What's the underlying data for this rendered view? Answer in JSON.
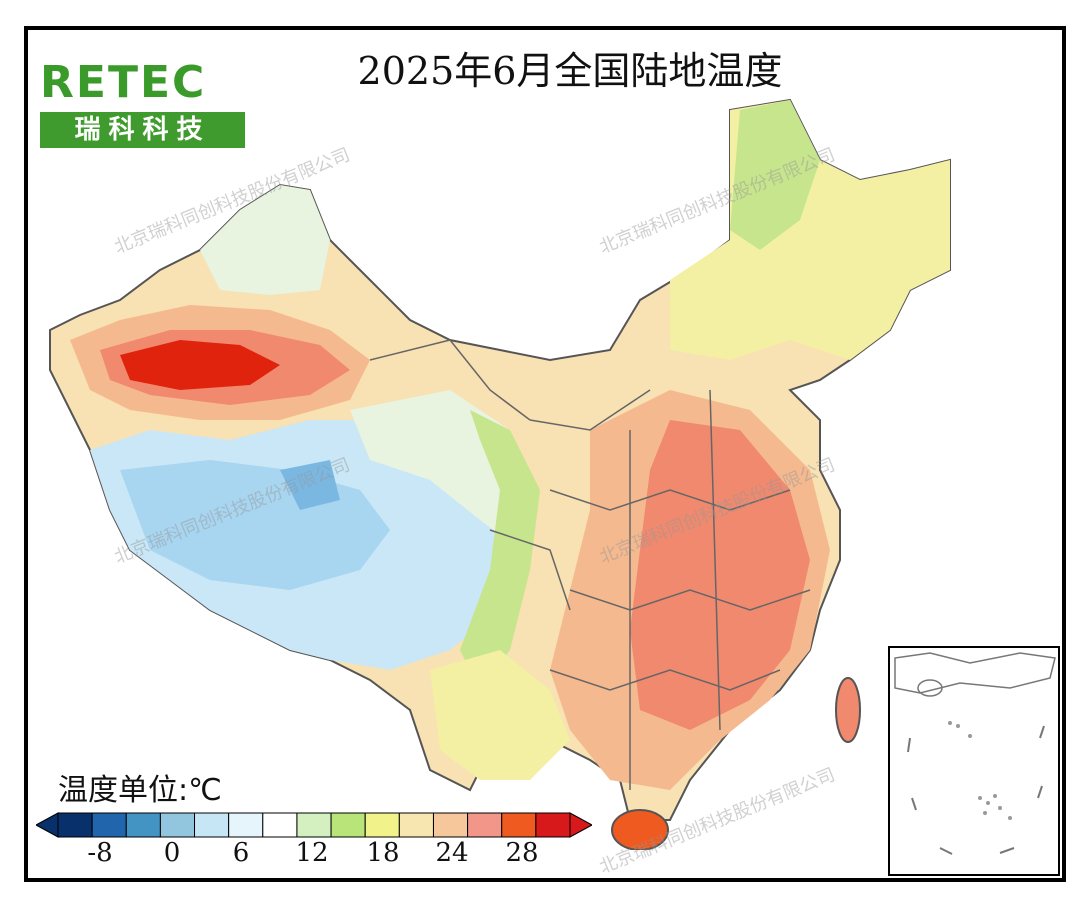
{
  "title": "2025年6月全国陆地温度",
  "logo": {
    "brand": "RETEC",
    "brand_cn": "瑞科科技"
  },
  "watermark_text": "北京瑞科同创科技股份有限公司",
  "unit_label": "温度单位:℃",
  "legend": {
    "ticks": [
      "-8",
      "0",
      "6",
      "12",
      "18",
      "24",
      "28"
    ],
    "colors": [
      "#08306b",
      "#2166ac",
      "#4393c3",
      "#92c5de",
      "#c6e6f6",
      "#e6f5fb",
      "#ffffff",
      "#d4f0c0",
      "#b8e47a",
      "#f2f28a",
      "#f8e6b0",
      "#f5c79a",
      "#f2968a",
      "#ef5a20",
      "#d7191c"
    ]
  },
  "map_colors": {
    "hot_core": "#e0230c",
    "very_warm": "#f0896e",
    "warm": "#f5b98f",
    "mild_warm": "#f8e1b2",
    "mild": "#f3f0a4",
    "cool_green": "#c7e58d",
    "cool": "#e8f4df",
    "cold": "#c9e7f6",
    "colder": "#a8d5f0",
    "coldest": "#7ab8e2",
    "border": "#555555"
  }
}
